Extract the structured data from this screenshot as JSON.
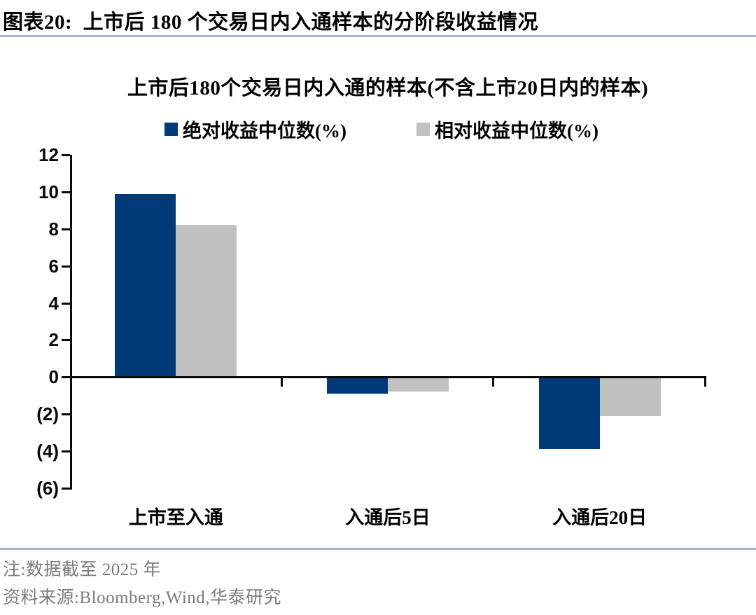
{
  "header": {
    "title": "图表20:  上市后 180 个交易日内入通样本的分阶段收益情况"
  },
  "chart_data": {
    "type": "bar",
    "title": "上市后180个交易日内入通的样本(不含上市20日内的样本)",
    "categories": [
      "上市至入通",
      "入通后5日",
      "入通后20日"
    ],
    "series": [
      {
        "name": "绝对收益中位数(%)",
        "color": "#003a78",
        "values": [
          9.9,
          -0.9,
          -3.9
        ]
      },
      {
        "name": "相对收益中位数(%)",
        "color": "#c1c1c1",
        "values": [
          8.2,
          -0.8,
          -2.1
        ]
      }
    ],
    "ylim": [
      -6,
      12
    ],
    "ytick_values": [
      12,
      10,
      8,
      6,
      4,
      2,
      0,
      -2,
      -4,
      -6
    ],
    "ytick_labels": [
      "12",
      "10",
      "8",
      "6",
      "4",
      "2",
      "0",
      "(2)",
      "(4)",
      "(6)"
    ],
    "xlabel": "",
    "ylabel": "",
    "grid": false,
    "legend_position": "top"
  },
  "footer": {
    "note": "注:数据截至 2025 年",
    "source": "资料来源:Bloomberg,Wind,华泰研究"
  },
  "colors": {
    "accent_blue": "#003a78",
    "bar_gray": "#c1c1c1",
    "divider_blue": "#a4b3ca",
    "note_gray": "#7a7a7a",
    "axis_black": "#0a0a0a"
  }
}
